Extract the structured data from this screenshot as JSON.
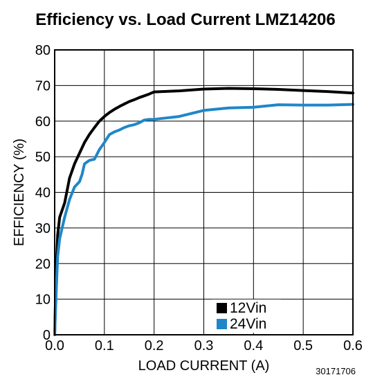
{
  "chart_data": {
    "type": "line",
    "title": "Efficiency vs. Load Current LMZ14206",
    "xlabel": "LOAD CURRENT (A)",
    "ylabel": "EFFICIENCY (%)",
    "xlim": [
      0,
      0.6
    ],
    "ylim": [
      0,
      80
    ],
    "xticks": [
      0,
      0.1,
      0.2,
      0.3,
      0.4,
      0.5,
      0.6
    ],
    "xtick_labels": [
      "0.0",
      "0.1",
      "0.2",
      "0.3",
      "0.4",
      "0.5",
      "0.6"
    ],
    "yticks": [
      0,
      10,
      20,
      30,
      40,
      50,
      60,
      70,
      80
    ],
    "ytick_labels": [
      "0",
      "10",
      "20",
      "30",
      "40",
      "50",
      "60",
      "70",
      "80"
    ],
    "grid": true,
    "legend_position": "bottom-right",
    "series": [
      {
        "name": "12Vin",
        "color": "#000000",
        "x": [
          0,
          0.003,
          0.006,
          0.01,
          0.02,
          0.03,
          0.04,
          0.05,
          0.06,
          0.07,
          0.08,
          0.09,
          0.1,
          0.11,
          0.12,
          0.13,
          0.14,
          0.15,
          0.16,
          0.17,
          0.18,
          0.19,
          0.2,
          0.25,
          0.3,
          0.35,
          0.4,
          0.45,
          0.5,
          0.55,
          0.6
        ],
        "y": [
          0,
          18,
          28,
          33,
          37,
          44,
          48,
          51,
          54,
          56.3,
          58.2,
          60,
          61.3,
          62.4,
          63.3,
          64.1,
          64.8,
          65.5,
          66,
          66.6,
          67.1,
          67.6,
          68.2,
          68.5,
          69,
          69.2,
          69.1,
          68.9,
          68.6,
          68.3,
          67.9
        ]
      },
      {
        "name": "24Vin",
        "color": "#1f87c8",
        "x": [
          0,
          0.003,
          0.006,
          0.01,
          0.02,
          0.03,
          0.04,
          0.05,
          0.055,
          0.06,
          0.07,
          0.08,
          0.09,
          0.1,
          0.11,
          0.12,
          0.13,
          0.14,
          0.15,
          0.16,
          0.17,
          0.18,
          0.19,
          0.2,
          0.25,
          0.3,
          0.35,
          0.4,
          0.45,
          0.5,
          0.55,
          0.6
        ],
        "y": [
          0,
          12,
          22,
          27,
          33,
          38,
          41.5,
          43,
          45,
          48,
          49,
          49.3,
          52,
          54,
          56.2,
          57,
          57.5,
          58.2,
          58.7,
          59,
          59.5,
          60.3,
          60.5,
          60.5,
          61.3,
          63,
          63.7,
          63.9,
          64.6,
          64.5,
          64.5,
          64.7
        ]
      }
    ]
  },
  "figure_id": "30171706"
}
